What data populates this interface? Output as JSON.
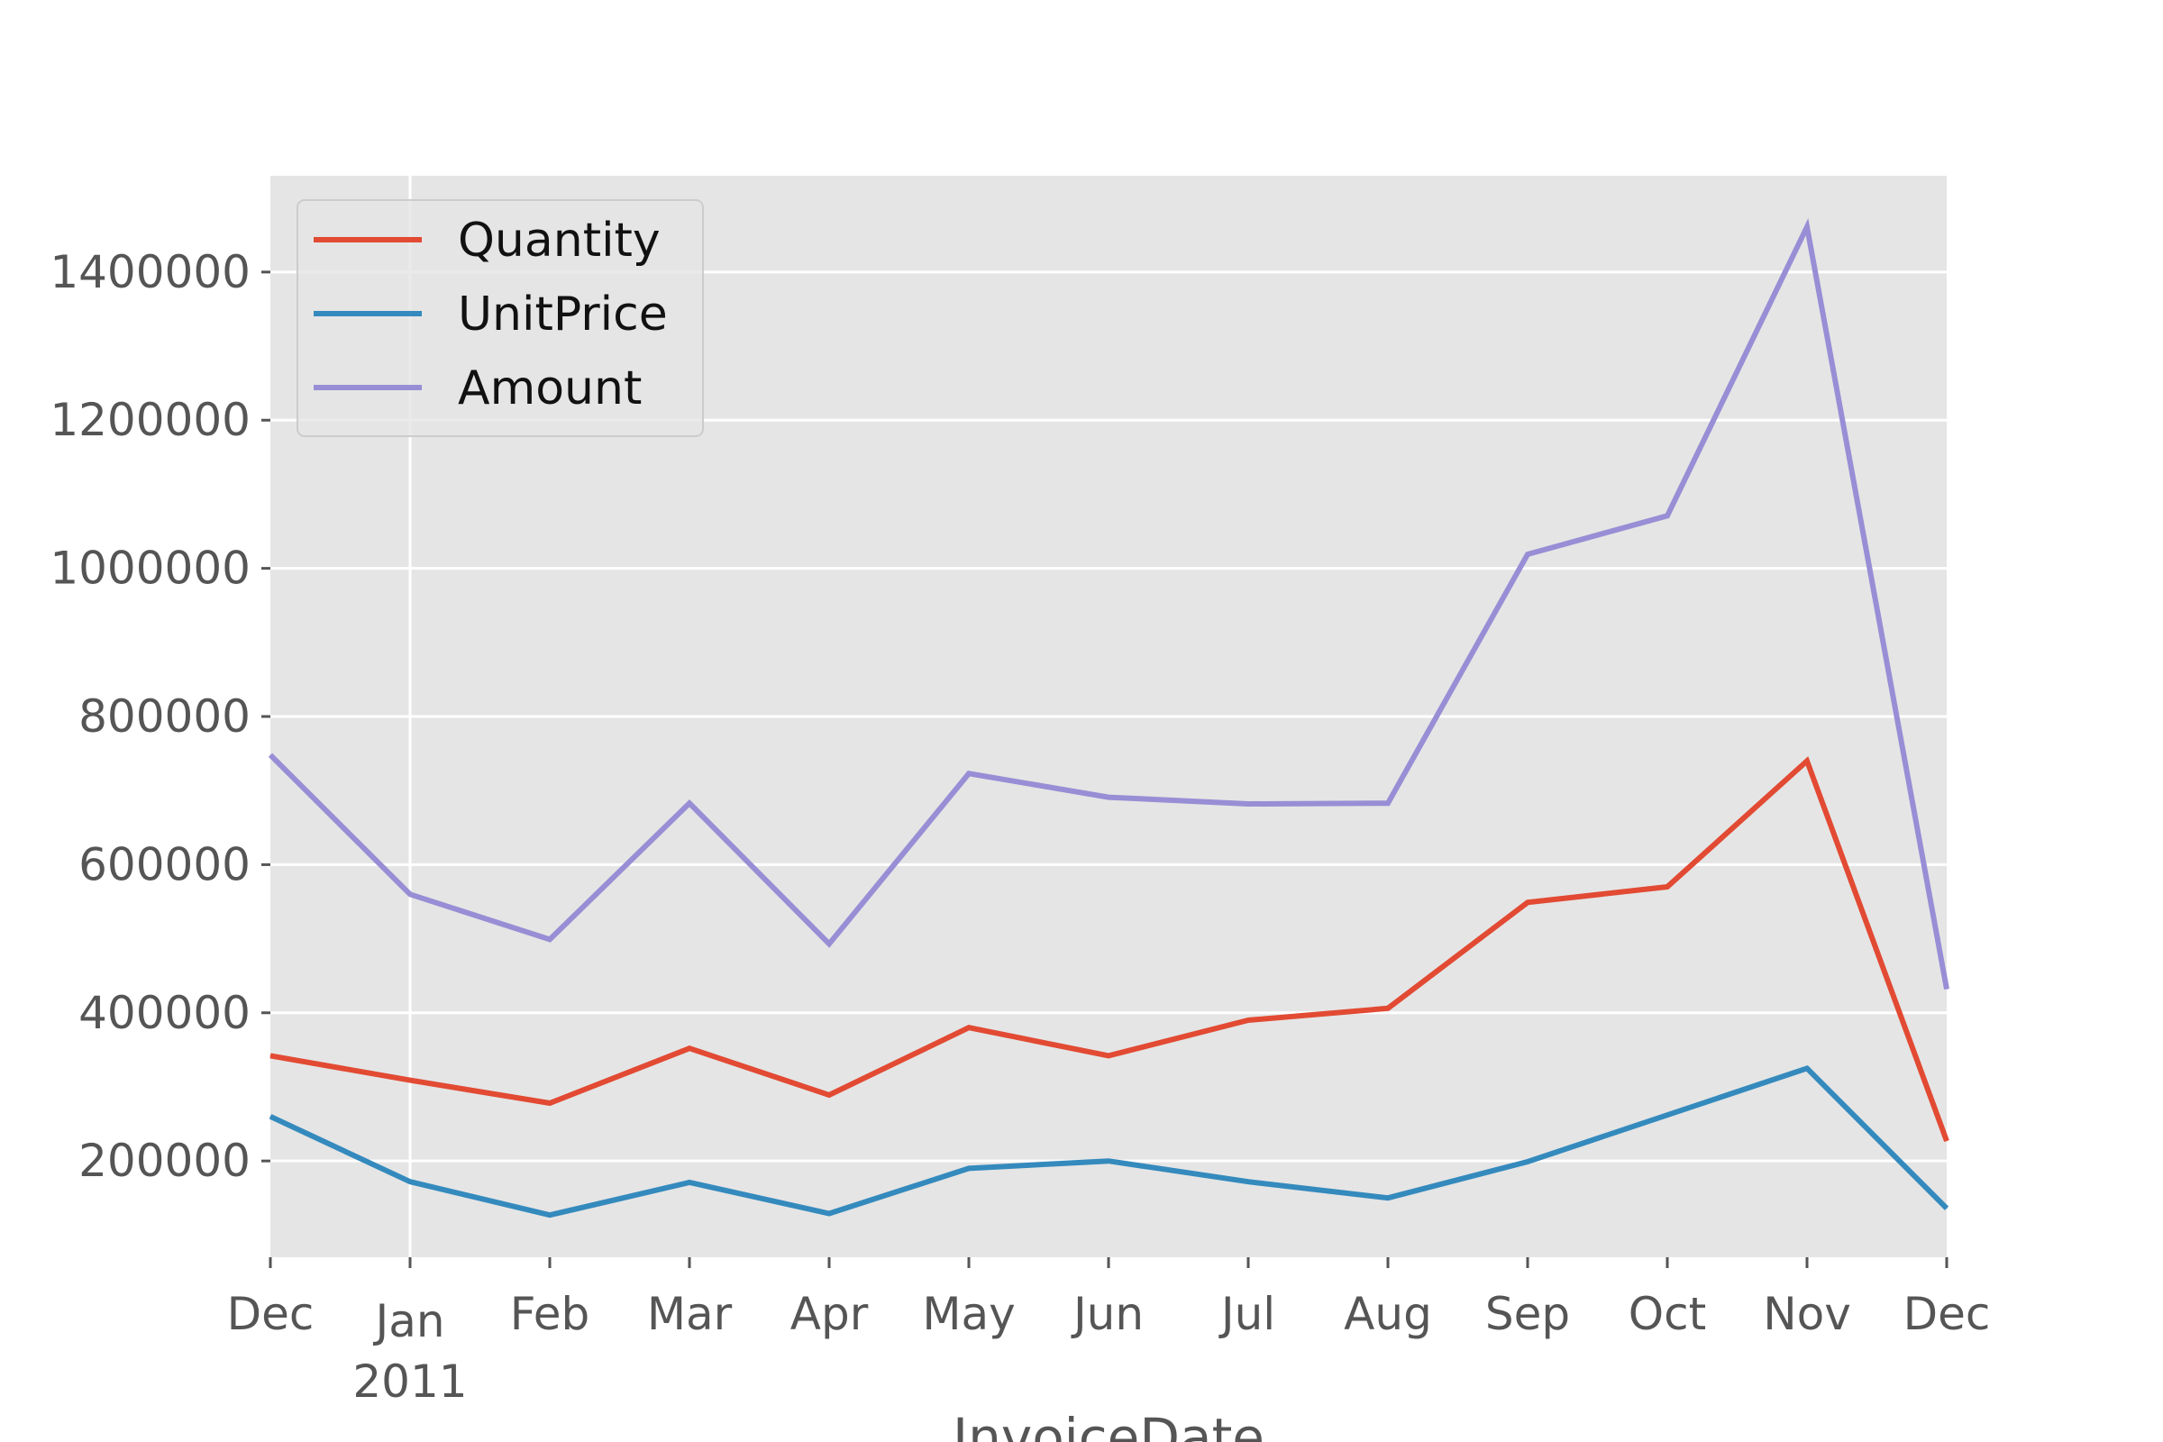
{
  "chart_data": {
    "type": "line",
    "x": [
      "2010-12",
      "2011-01",
      "2011-02",
      "2011-03",
      "2011-04",
      "2011-05",
      "2011-06",
      "2011-07",
      "2011-08",
      "2011-09",
      "2011-10",
      "2011-11",
      "2011-12"
    ],
    "x_tick_labels": [
      "Dec",
      "Jan",
      "Feb",
      "Mar",
      "Apr",
      "May",
      "Jun",
      "Jul",
      "Aug",
      "Sep",
      "Oct",
      "Nov",
      "Dec"
    ],
    "x_tick_year_label": "2011",
    "xlabel": "InvoiceDate",
    "ylabel": "",
    "ylim": [
      70000,
      1530000
    ],
    "y_ticks": [
      200000,
      400000,
      600000,
      800000,
      1000000,
      1200000,
      1400000
    ],
    "y_tick_labels": [
      "200000",
      "400000",
      "600000",
      "800000",
      "1000000",
      "1200000",
      "1400000"
    ],
    "grid": true,
    "legend_position": "top-left",
    "series": [
      {
        "name": "Quantity",
        "color": "#E24A33",
        "values": [
          342000,
          309000,
          278000,
          352000,
          289000,
          380000,
          342000,
          390000,
          406000,
          549000,
          570000,
          740000,
          227000
        ]
      },
      {
        "name": "UnitPrice",
        "color": "#348ABD",
        "values": [
          260000,
          172000,
          127000,
          171000,
          129000,
          190000,
          200000,
          172000,
          150000,
          199000,
          262000,
          325000,
          136000
        ]
      },
      {
        "name": "Amount",
        "color": "#988ED5",
        "values": [
          748000,
          560000,
          499000,
          683000,
          493000,
          723000,
          691000,
          682000,
          683000,
          1019000,
          1071000,
          1461000,
          432000
        ]
      }
    ]
  }
}
